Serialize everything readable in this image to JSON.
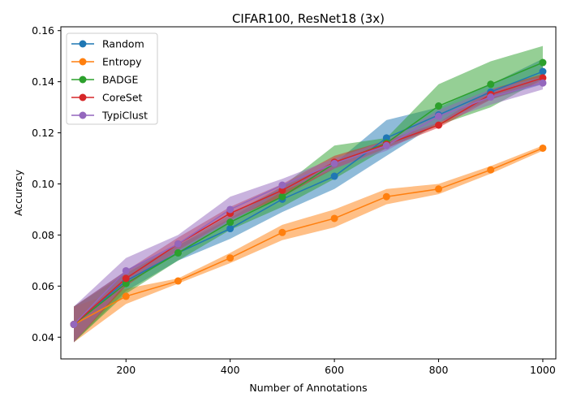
{
  "chart_data": {
    "type": "line",
    "title": "CIFAR100, ResNet18 (3x)",
    "xlabel": "Number of Annotations",
    "ylabel": "Accuracy",
    "xlim": [
      75,
      1025
    ],
    "ylim": [
      0.0315,
      0.1615
    ],
    "x": [
      100,
      200,
      300,
      400,
      500,
      600,
      700,
      800,
      900,
      1000
    ],
    "xticks": [
      200,
      400,
      600,
      800,
      1000
    ],
    "xtick_labels": [
      "200",
      "400",
      "600",
      "800",
      "1000"
    ],
    "yticks": [
      0.04,
      0.06,
      0.08,
      0.1,
      0.12,
      0.14,
      0.16
    ],
    "ytick_labels": [
      "0.04",
      "0.06",
      "0.08",
      "0.10",
      "0.12",
      "0.14",
      "0.16"
    ],
    "grid": false,
    "legend_position": "top-left",
    "series": [
      {
        "name": "Random",
        "color": "#1f77b4",
        "values": [
          0.045,
          0.062,
          0.073,
          0.0825,
          0.094,
          0.103,
          0.118,
          0.127,
          0.136,
          0.144
        ],
        "lower": [
          0.038,
          0.058,
          0.07,
          0.0785,
          0.089,
          0.098,
          0.111,
          0.124,
          0.133,
          0.139
        ],
        "upper": [
          0.052,
          0.066,
          0.076,
          0.0865,
          0.099,
          0.108,
          0.125,
          0.13,
          0.139,
          0.149
        ]
      },
      {
        "name": "Entropy",
        "color": "#ff7f0e",
        "values": [
          0.045,
          0.056,
          0.062,
          0.071,
          0.081,
          0.0865,
          0.095,
          0.098,
          0.1055,
          0.114
        ],
        "lower": [
          0.038,
          0.053,
          0.061,
          0.069,
          0.078,
          0.083,
          0.092,
          0.096,
          0.104,
          0.113
        ],
        "upper": [
          0.052,
          0.059,
          0.063,
          0.073,
          0.084,
          0.09,
          0.098,
          0.1,
          0.107,
          0.115
        ]
      },
      {
        "name": "BADGE",
        "color": "#2ca02c",
        "values": [
          0.045,
          0.061,
          0.073,
          0.085,
          0.095,
          0.108,
          0.116,
          0.1305,
          0.139,
          0.1475
        ],
        "lower": [
          0.038,
          0.057,
          0.07,
          0.082,
          0.091,
          0.102,
          0.114,
          0.123,
          0.13,
          0.141
        ],
        "upper": [
          0.052,
          0.065,
          0.076,
          0.088,
          0.099,
          0.115,
          0.118,
          0.139,
          0.148,
          0.154
        ]
      },
      {
        "name": "CoreSet",
        "color": "#d62728",
        "values": [
          0.045,
          0.063,
          0.0765,
          0.0885,
          0.0975,
          0.1085,
          0.1155,
          0.123,
          0.135,
          0.1415
        ],
        "lower": [
          0.038,
          0.06,
          0.074,
          0.086,
          0.095,
          0.106,
          0.114,
          0.122,
          0.133,
          0.14
        ],
        "upper": [
          0.052,
          0.066,
          0.079,
          0.091,
          0.1,
          0.111,
          0.117,
          0.124,
          0.137,
          0.143
        ]
      },
      {
        "name": "TypiClust",
        "color": "#9467bd",
        "values": [
          0.045,
          0.066,
          0.0765,
          0.09,
          0.0995,
          0.108,
          0.115,
          0.1265,
          0.134,
          0.1395
        ],
        "lower": [
          0.038,
          0.061,
          0.073,
          0.085,
          0.097,
          0.106,
          0.113,
          0.124,
          0.131,
          0.137
        ],
        "upper": [
          0.052,
          0.071,
          0.08,
          0.095,
          0.102,
          0.11,
          0.117,
          0.129,
          0.137,
          0.142
        ]
      }
    ]
  }
}
